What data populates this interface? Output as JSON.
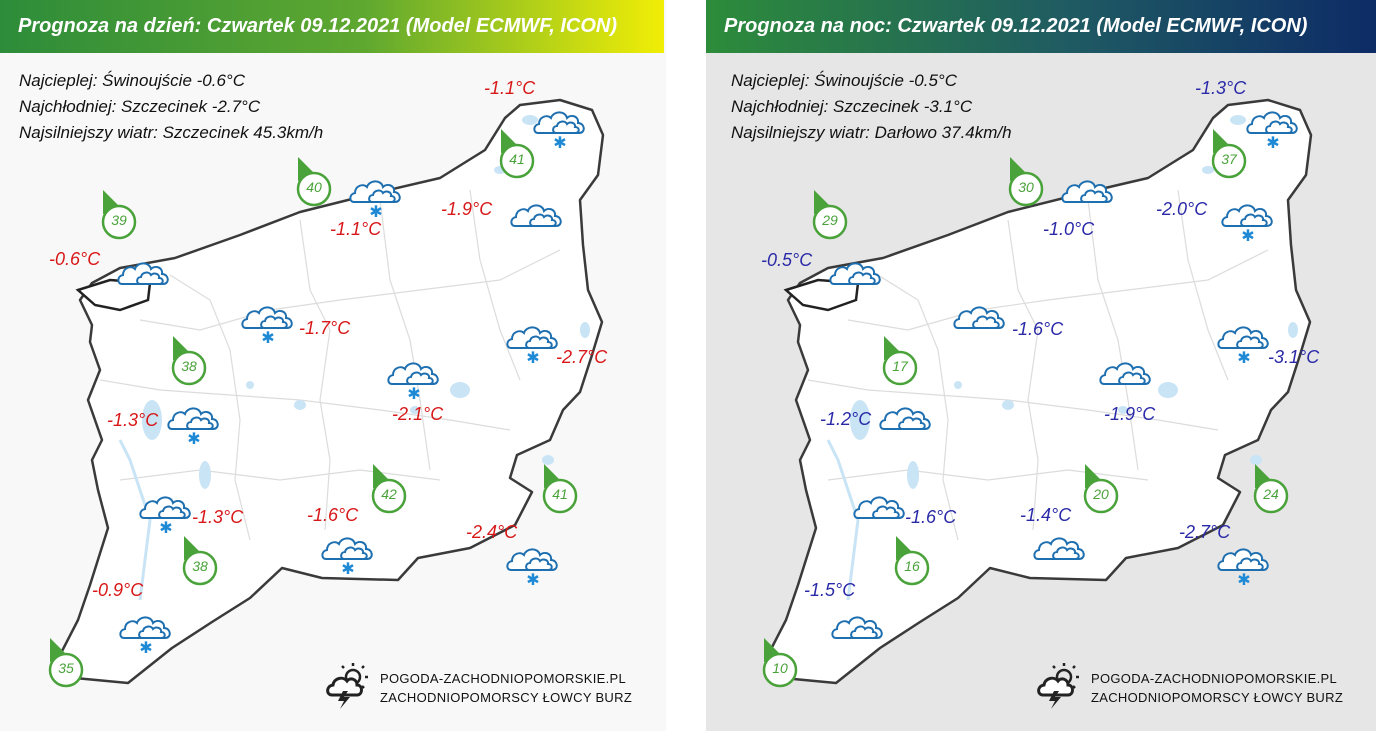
{
  "colors": {
    "day_temp": "#d81818",
    "night_temp": "#2a2aa8",
    "wind": "#4aa23a",
    "cloud": "#1e6fb0",
    "snow": "#1e8ad6"
  },
  "day": {
    "title": "Prognoza na dzień: Czwartek 09.12.2021 (Model ECMWF, ICON)",
    "warmest": "Najcieplej: Świnoujście -0.6°C",
    "coldest": "Najchłodniej: Szczecinek -2.7°C",
    "windiest": "Najsilniejszy wiatr: Szczecinek 45.3km/h",
    "temps": [
      "-1.1°C",
      "-1.9°C",
      "-1.1°C",
      "-0.6°C",
      "-1.7°C",
      "-2.7°C",
      "-2.1°C",
      "-1.3°C",
      "-1.3°C",
      "-1.6°C",
      "-2.4°C",
      "-0.9°C"
    ],
    "winds": [
      "41",
      "40",
      "39",
      "38",
      "42",
      "41",
      "38",
      "35"
    ],
    "icons": [
      "snow-cloud-icon",
      "snow-cloud-icon",
      "cloud-icon",
      "cloud-icon",
      "snow-cloud-icon",
      "snow-cloud-icon",
      "snow-cloud-icon",
      "snow-cloud-icon",
      "snow-cloud-icon",
      "snow-cloud-icon",
      "snow-cloud-icon",
      "snow-cloud-icon"
    ]
  },
  "night": {
    "title": "Prognoza na noc: Czwartek 09.12.2021 (Model ECMWF, ICON)",
    "warmest": "Najcieplej: Świnoujście -0.5°C",
    "coldest": "Najchłodniej: Szczecinek -3.1°C",
    "windiest": "Najsilniejszy wiatr: Darłowo 37.4km/h",
    "temps": [
      "-1.3°C",
      "-2.0°C",
      "-1.0°C",
      "-0.5°C",
      "-1.6°C",
      "-3.1°C",
      "-1.9°C",
      "-1.2°C",
      "-1.6°C",
      "-1.4°C",
      "-2.7°C",
      "-1.5°C"
    ],
    "winds": [
      "37",
      "30",
      "29",
      "17",
      "20",
      "24",
      "16",
      "10"
    ],
    "icons": [
      "snow-cloud-icon",
      "snow-cloud-icon",
      "cloud-icon",
      "cloud-icon",
      "cloud-icon",
      "snow-cloud-icon",
      "cloud-icon",
      "cloud-icon",
      "cloud-icon",
      "cloud-icon",
      "snow-cloud-icon",
      "cloud-icon"
    ]
  },
  "logo": {
    "line1": "POGODA-ZACHODNIOPOMORSKIE.PL",
    "line2": "ZACHODNIOPOMORSCY ŁOWCY BURZ"
  }
}
